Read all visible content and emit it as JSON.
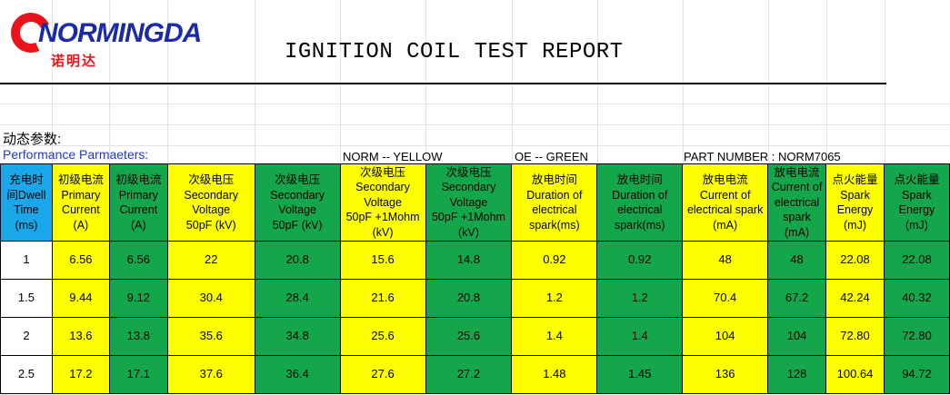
{
  "logo": {
    "brand": "NORMINGDA",
    "brand_cn": "诺明达"
  },
  "title": "IGNITION COIL TEST REPORT",
  "labels": {
    "dynamic_cn": "动态参数:",
    "performance": "Performance Parmaeters:",
    "norm": "NORM -- YELLOW",
    "oe": "OE -- GREEN",
    "part_number": "PART NUMBER : NORM7065"
  },
  "colors": {
    "blue": "#19a7e9",
    "yellow": "#ffff00",
    "green": "#13a64a",
    "title_blue": "#1f3ad1",
    "logo_red": "#e8141a"
  },
  "table": {
    "headers": [
      [
        "充电时",
        "间Dwell",
        "Time",
        "(ms)"
      ],
      [
        "初级电流",
        "Primary",
        "Current",
        "(A)"
      ],
      [
        "初级电流",
        "Primary",
        "Current",
        "(A)"
      ],
      [
        "次级电压",
        "Secondary",
        "Voltage",
        "50pF (kV)"
      ],
      [
        "次级电压",
        "Secondary",
        "Voltage",
        "50pF (kV)"
      ],
      [
        "次级电压",
        "Secondary",
        "Voltage",
        "50pF +1Mohm",
        "(kV)"
      ],
      [
        "次级电压",
        "Secondary",
        "Voltage",
        "50pF +1Mohm",
        "(kV)"
      ],
      [
        "放电时间",
        "Duration of",
        "electrical",
        "spark(ms)"
      ],
      [
        "放电时间",
        "Duration of",
        "electrical",
        "spark(ms)"
      ],
      [
        "放电电流",
        "Current of",
        "electrical spark",
        "(mA)"
      ],
      [
        "放电电流",
        "Current of",
        "electrical",
        "spark",
        "(mA)"
      ],
      [
        "点火能量",
        "Spark",
        "Energy",
        "(mJ)"
      ],
      [
        "点火能量",
        "Spark",
        "Energy",
        "(mJ)"
      ]
    ],
    "rows": [
      [
        "1",
        "6.56",
        "6.56",
        "22",
        "20.8",
        "15.6",
        "14.8",
        "0.92",
        "0.92",
        "48",
        "48",
        "22.08",
        "22.08"
      ],
      [
        "1.5",
        "9.44",
        "9.12",
        "30.4",
        "28.4",
        "21.6",
        "20.8",
        "1.2",
        "1.2",
        "70.4",
        "67.2",
        "42.24",
        "40.32"
      ],
      [
        "2",
        "13.6",
        "13.8",
        "35.6",
        "34.8",
        "25.6",
        "25.6",
        "1.4",
        "1.4",
        "104",
        "104",
        "72.80",
        "72.80"
      ],
      [
        "2.5",
        "17.2",
        "17.1",
        "37.6",
        "36.4",
        "27.6",
        "27.2",
        "1.48",
        "1.45",
        "136",
        "128",
        "100.64",
        "94.72"
      ]
    ]
  }
}
